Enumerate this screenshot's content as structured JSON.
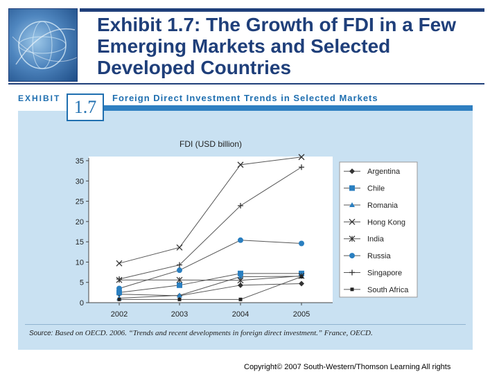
{
  "slide": {
    "title": "Exhibit 1.7: The Growth of FDI in a Few Emerging Markets and Selected Developed Countries",
    "copyright": "Copyright© 2007 South-Western/Thomson Learning   All rights"
  },
  "exhibit": {
    "label": "EXHIBIT",
    "number": "1.7",
    "header": "Foreign Direct Investment Trends in Selected Markets",
    "source_label": "Source:",
    "source_text": "Based on OECD. 2006. “Trends and recent developments in foreign direct investment.” France, OECD."
  },
  "colors": {
    "title": "#1f3f7a",
    "accent": "#1f6fb0",
    "panel": "#c9e1f2"
  },
  "chart_data": {
    "type": "line",
    "title": "FDI (USD billion)",
    "xlabel": "",
    "ylabel": "",
    "x": [
      "2002",
      "2003",
      "2004",
      "2005"
    ],
    "ylim": [
      0,
      35
    ],
    "yticks": [
      0,
      5,
      10,
      15,
      20,
      25,
      30,
      35
    ],
    "grid": false,
    "legend_position": "right",
    "series": [
      {
        "name": "Argentina",
        "marker": "diamond",
        "color": "#3a3a3a",
        "values": [
          2.1,
          1.7,
          4.3,
          4.7
        ]
      },
      {
        "name": "Chile",
        "marker": "square",
        "color": "#2a7fc0",
        "values": [
          2.5,
          4.3,
          7.2,
          7.2
        ]
      },
      {
        "name": "Romania",
        "marker": "triangle",
        "color": "#2a7fc0",
        "values": [
          1.1,
          1.8,
          6.4,
          6.5
        ]
      },
      {
        "name": "Hong Kong",
        "marker": "x",
        "color": "#3a3a3a",
        "values": [
          9.7,
          13.6,
          34.0,
          35.9
        ]
      },
      {
        "name": "India",
        "marker": "asterisk",
        "color": "#3a3a3a",
        "values": [
          5.6,
          5.6,
          5.5,
          6.6
        ]
      },
      {
        "name": "Russia",
        "marker": "circle",
        "color": "#2a7fc0",
        "values": [
          3.5,
          8.0,
          15.4,
          14.6
        ]
      },
      {
        "name": "Singapore",
        "marker": "plus",
        "color": "#3a3a3a",
        "values": [
          5.8,
          9.3,
          23.9,
          33.4
        ]
      },
      {
        "name": "South Africa",
        "marker": "smallsquare",
        "color": "#3a3a3a",
        "values": [
          0.8,
          0.8,
          0.8,
          6.4
        ]
      }
    ]
  }
}
